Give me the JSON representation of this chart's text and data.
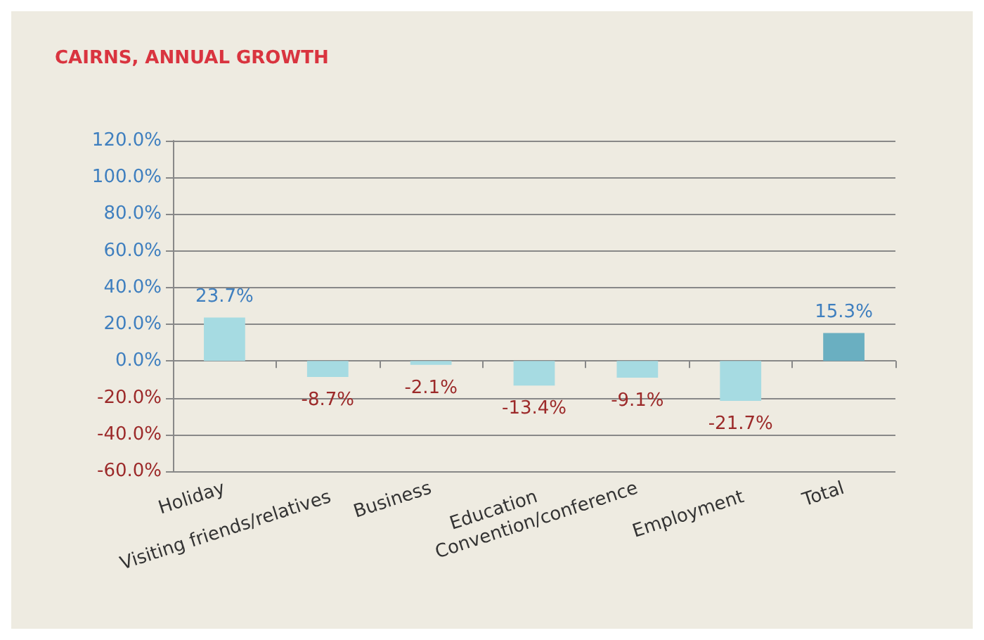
{
  "chart_data": {
    "type": "bar",
    "title": "CAIRNS, ANNUAL GROWTH",
    "categories": [
      "Holiday",
      "Visiting friends/relatives",
      "Business",
      "Education",
      "Convention/conference",
      "Employment",
      "Total"
    ],
    "values": [
      23.7,
      -8.7,
      -2.1,
      -13.4,
      -9.1,
      -21.7,
      15.3
    ],
    "value_labels": [
      "23.7%",
      "-8.7%",
      "-2.1%",
      "-13.4%",
      "-9.1%",
      "-21.7%",
      "15.3%"
    ],
    "colors": [
      "#a6dbe2",
      "#a6dbe2",
      "#a6dbe2",
      "#a6dbe2",
      "#a6dbe2",
      "#a6dbe2",
      "#6aafc1"
    ],
    "ylim": [
      -60,
      120
    ],
    "yticks": [
      {
        "value": -60,
        "label": "-60.0%"
      },
      {
        "value": -40,
        "label": "-40.0%"
      },
      {
        "value": -20,
        "label": "-20.0%"
      },
      {
        "value": 0,
        "label": "0.0%"
      },
      {
        "value": 20,
        "label": "20.0%"
      },
      {
        "value": 40,
        "label": "40.0%"
      },
      {
        "value": 60,
        "label": "60.0%"
      },
      {
        "value": 80,
        "label": "80.0%"
      },
      {
        "value": 100,
        "label": "100.0%"
      },
      {
        "value": 120,
        "label": "120.0%"
      }
    ],
    "grid": "y"
  }
}
